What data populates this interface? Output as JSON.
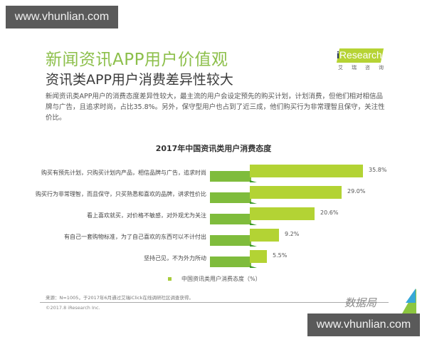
{
  "watermark": {
    "top": "www.vhunlian.com",
    "bottom": "www.vhunlian.com"
  },
  "header": {
    "title": "新闻资讯APP用户价值观",
    "subtitle": "资讯类APP用户消费差异性较大",
    "description": "新闻资讯类APP用户的消费态度差异性较大，最主流的用户会设定预先的购买计划，计划消费，但他们相对相信品牌与广告，且追求时尚，占比35.8%。另外，保守型用户也占到了近三成，他们购买行为非常理智且保守，关注性价比。"
  },
  "logo": {
    "i": "i",
    "text": "Research",
    "cn": [
      "艾",
      "瑞",
      "咨",
      "询"
    ]
  },
  "colors": {
    "title_green": "#8cbf4a",
    "bar_main": "#b3d334",
    "bar_base": "#7fbc3c",
    "bar_fold": "#3a9a2a"
  },
  "chart_data": {
    "type": "bar",
    "orientation": "horizontal",
    "title": "2017年中国资讯类用户消费态度",
    "categories": [
      "购买有预先计划，只购买计划内产品，相信品牌与广告，追求时尚",
      "购买行为非常理智，而且保守，只买熟悉和喜欢的品牌，讲求性价比",
      "看上喜欢就买，对价格不敏感，对外观尤为关注",
      "有自己一套购物标准，为了自己喜欢的东西可以不计付出",
      "坚持己见，不为外力所动"
    ],
    "values": [
      35.8,
      29.0,
      20.6,
      9.2,
      5.5
    ],
    "value_labels": [
      "35.8%",
      "29.0%",
      "20.6%",
      "9.2%",
      "5.5%"
    ],
    "series": [
      {
        "name": "中国资讯类用户消费态度（%）",
        "values": [
          35.8,
          29.0,
          20.6,
          9.2,
          5.5
        ]
      }
    ],
    "xlabel": "",
    "ylabel": "",
    "xlim": [
      0,
      40
    ],
    "grid": false,
    "legend_position": "bottom"
  },
  "legend": {
    "label": "中国资讯类用户消费态度（%）"
  },
  "footer": {
    "source": "来源：N=1005，于2017年6月通过艾瑞iClick在线调研社区调查获得。",
    "copyright": "©2017.8 iResearch Inc.",
    "brand": "数据局"
  }
}
